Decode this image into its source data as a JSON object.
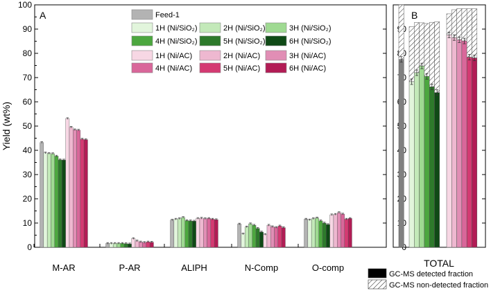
{
  "chart_data": [
    {
      "panel_label": "A",
      "type": "bar",
      "ylabel": "Yield (wt%)",
      "ylim": [
        0,
        100
      ],
      "yticks": [
        0,
        10,
        20,
        30,
        40,
        50,
        60,
        70,
        80,
        90,
        100
      ],
      "categories": [
        "M-AR",
        "P-AR",
        "ALIPH",
        "N-Comp",
        "O-comp"
      ],
      "series": [
        {
          "name": "Feed-1",
          "color": "#b3b3b3",
          "values": [
            43.2,
            1.6,
            11.2,
            9.6,
            11.6
          ]
        },
        {
          "name": "1H (Ni/SiO2)",
          "color": "#e2f5dc",
          "values": [
            38.9,
            1.6,
            11.6,
            5.5,
            11.3
          ]
        },
        {
          "name": "2H (Ni/SiO2)",
          "color": "#c3e9b9",
          "values": [
            38.7,
            1.6,
            11.8,
            8.4,
            11.8
          ]
        },
        {
          "name": "3H (Ni/SiO2)",
          "color": "#9fda92",
          "values": [
            38.6,
            1.6,
            12.3,
            9.7,
            12.1
          ]
        },
        {
          "name": "4H (Ni/SiO2)",
          "color": "#4ca73f",
          "values": [
            37.6,
            1.6,
            11.0,
            9.1,
            10.9
          ]
        },
        {
          "name": "5H (Ni/SiO2)",
          "color": "#2d7a2b",
          "values": [
            36.1,
            1.5,
            10.9,
            7.8,
            10.0
          ]
        },
        {
          "name": "6H (Ni/SiO2)",
          "color": "#0f4a16",
          "values": [
            36.0,
            1.4,
            10.8,
            6.3,
            9.4
          ]
        },
        {
          "name": "1H (Ni/AC)",
          "color": "#f7d7e4",
          "values": [
            53.1,
            3.6,
            11.9,
            5.3,
            13.4
          ]
        },
        {
          "name": "2H (Ni/AC)",
          "color": "#eeb8d0",
          "values": [
            49.5,
            2.6,
            12.0,
            9.1,
            13.6
          ]
        },
        {
          "name": "3H (Ni/AC)",
          "color": "#e18eb5",
          "values": [
            48.5,
            2.2,
            11.8,
            8.5,
            14.3
          ]
        },
        {
          "name": "4H (Ni/AC)",
          "color": "#d9679a",
          "values": [
            48.3,
            2.0,
            11.9,
            8.2,
            13.7
          ]
        },
        {
          "name": "5H (Ni/AC)",
          "color": "#d43a72",
          "values": [
            44.6,
            2.2,
            11.6,
            8.8,
            11.6
          ]
        },
        {
          "name": "6H (Ni/AC)",
          "color": "#b21c55",
          "values": [
            44.4,
            2.1,
            11.4,
            8.1,
            11.9
          ]
        }
      ],
      "legend": {
        "items": [
          {
            "label": "Feed-1",
            "color": "#b3b3b3"
          },
          {
            "label": "1H (Ni/SiO₂)",
            "color": "#e2f5dc"
          },
          {
            "label": "2H (Ni/SiO₂)",
            "color": "#c3e9b9"
          },
          {
            "label": "3H (Ni/SiO₂)",
            "color": "#9fda92"
          },
          {
            "label": "4H (Ni/SiO₂)",
            "color": "#4ca73f"
          },
          {
            "label": "5H (Ni/SiO₂)",
            "color": "#2d7a2b"
          },
          {
            "label": "6H (Ni/SiO₂)",
            "color": "#0f4a16"
          },
          {
            "label": "1H (Ni/AC)",
            "color": "#f7d7e4"
          },
          {
            "label": "2H (Ni/AC)",
            "color": "#eeb8d0"
          },
          {
            "label": "3H (Ni/AC)",
            "color": "#e18eb5"
          },
          {
            "label": "4H (Ni/AC)",
            "color": "#d9679a"
          },
          {
            "label": "5H (Ni/AC)",
            "color": "#d43a72"
          },
          {
            "label": "6H (Ni/AC)",
            "color": "#b21c55"
          }
        ]
      },
      "grid": false
    },
    {
      "panel_label": "B",
      "type": "bar",
      "ylim": [
        0,
        100
      ],
      "yticks": [
        0,
        10,
        20,
        30,
        40,
        50,
        60,
        70,
        80,
        90
      ],
      "categories": [
        "TOTAL"
      ],
      "series_colors": [
        "#808080",
        "#e2f5dc",
        "#c3e9b9",
        "#9fda92",
        "#4ca73f",
        "#2d7a2b",
        "#0f4a16",
        "#f7d7e4",
        "#eeb8d0",
        "#e18eb5",
        "#d9679a",
        "#d43a72",
        "#b21c55"
      ],
      "detected": [
        77.5,
        68.3,
        72.0,
        74.8,
        70.5,
        66.2,
        63.8,
        87.6,
        86.5,
        85.6,
        85.1,
        78.4,
        78.1
      ],
      "total": [
        100,
        91.0,
        92.7,
        92.6,
        92.3,
        92.8,
        93.0,
        96.3,
        98.0,
        98.4,
        98.4,
        98.4,
        98.4
      ],
      "legend": {
        "items": [
          {
            "label": "GC-MS detected fraction",
            "style": "solid"
          },
          {
            "label": "GC-MS non-detected fraction",
            "style": "hatched"
          }
        ]
      },
      "grid": false
    }
  ]
}
